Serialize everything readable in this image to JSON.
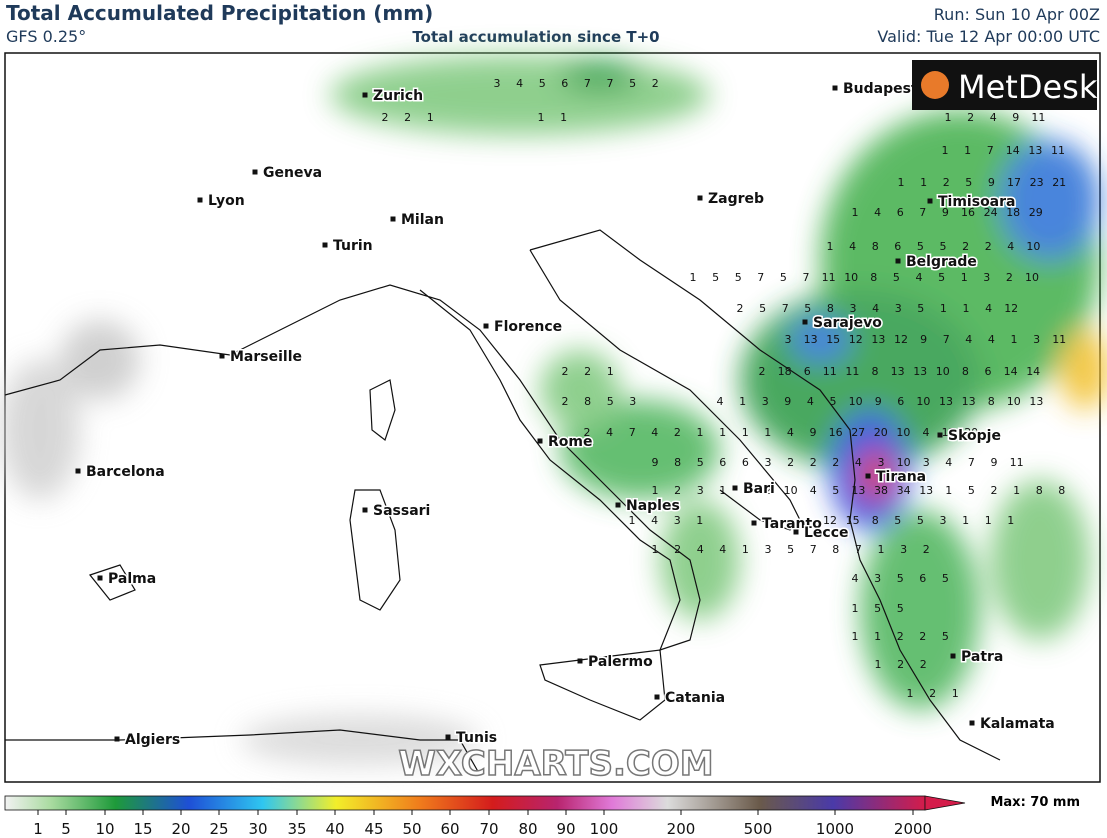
{
  "header": {
    "title": "Total Accumulated Precipitation (mm)",
    "model": "GFS 0.25°",
    "subtitle": "Total accumulation since T+0",
    "run": "Run: Sun 10 Apr 00Z",
    "valid": "Valid: Tue 12 Apr 00:00 UTC"
  },
  "logo": "MetDesk",
  "watermark": "WXCHARTS.COM",
  "cities": [
    "Zurich",
    "Budapest",
    "Geneva",
    "Lyon",
    "Milan",
    "Turin",
    "Zagreb",
    "Timisoara",
    "Belgrade",
    "Florence",
    "Sarajevo",
    "Marseille",
    "Rome",
    "Skopje",
    "Tirana",
    "Bari",
    "Barcelona",
    "Naples",
    "Sassari",
    "Taranto",
    "Lecce",
    "Palma",
    "Palermo",
    "Patra",
    "Catania",
    "Kalamata",
    "Algiers",
    "Tunis"
  ],
  "precip_rows": [
    [
      3,
      4,
      5,
      6,
      7,
      7,
      5,
      2
    ],
    [
      2,
      2,
      1
    ],
    [
      1,
      1
    ],
    [
      1,
      2,
      4,
      9,
      11
    ],
    [
      1,
      1,
      7,
      14,
      13,
      11
    ],
    [
      1,
      1,
      2,
      5,
      9,
      17,
      23,
      21
    ],
    [
      1,
      4,
      6,
      7,
      9,
      16,
      24,
      18,
      29
    ],
    [
      1,
      4,
      8,
      6,
      5,
      5,
      2,
      2,
      4,
      10
    ],
    [
      1,
      5,
      5,
      7,
      5,
      7,
      11,
      10,
      8,
      5,
      4,
      5,
      1,
      3,
      2,
      10
    ],
    [
      2,
      5,
      7,
      5,
      8,
      3,
      4,
      3,
      5,
      1,
      1,
      4,
      12
    ],
    [
      3,
      13,
      15,
      12,
      13,
      12,
      9,
      7,
      4,
      4,
      1,
      3,
      11
    ],
    [
      2,
      2,
      1
    ],
    [
      2,
      18,
      6,
      11,
      11,
      8,
      13,
      13,
      10,
      8,
      6,
      14,
      14
    ],
    [
      2,
      8,
      5,
      3
    ],
    [
      4,
      1,
      3,
      9,
      4,
      5,
      10,
      9,
      6,
      10,
      13,
      13,
      8,
      10,
      13
    ],
    [
      2,
      4,
      7,
      4,
      2,
      1,
      1,
      1,
      1,
      4,
      9,
      16,
      27,
      20,
      10,
      4,
      17,
      20
    ],
    [
      9,
      8,
      5,
      6,
      6,
      3,
      2,
      2,
      2,
      4,
      3,
      10,
      3,
      4,
      7,
      9,
      11
    ],
    [
      1,
      2,
      3,
      1,
      1,
      2,
      10,
      4,
      5,
      13,
      38,
      34,
      13,
      1,
      5,
      2,
      1,
      8,
      8
    ],
    [
      1,
      4,
      3,
      1
    ],
    [
      12,
      15,
      8,
      5,
      5,
      3,
      1,
      1,
      1
    ],
    [
      1,
      2,
      4,
      4,
      1,
      3,
      5,
      7,
      8,
      7,
      1,
      3,
      2
    ],
    [
      4,
      3,
      5,
      6,
      5
    ],
    [
      1,
      5,
      5
    ],
    [
      1,
      1,
      2,
      2,
      5
    ],
    [
      1,
      2,
      2
    ],
    [
      1,
      2,
      1
    ]
  ],
  "colorbar": {
    "labels": [
      1,
      5,
      10,
      15,
      20,
      25,
      30,
      35,
      40,
      45,
      50,
      60,
      70,
      80,
      90,
      100,
      200,
      500,
      1000,
      2000
    ],
    "max_label": "Max: 70 mm"
  }
}
